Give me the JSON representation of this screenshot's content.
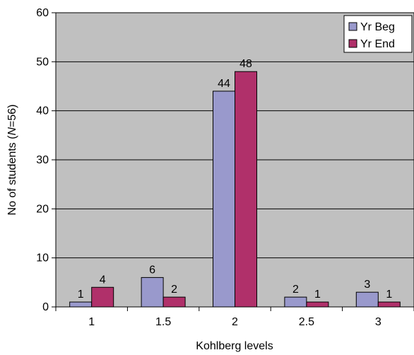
{
  "chart_data": {
    "type": "bar",
    "xlabel": "Kohlberg levels",
    "ylabel_prefix": "No of students (",
    "ylabel_italic": "N",
    "ylabel_suffix": "=56)",
    "categories": [
      "1",
      "1.5",
      "2",
      "2.5",
      "3"
    ],
    "ylim": [
      0,
      60
    ],
    "yticks": [
      0,
      10,
      20,
      30,
      40,
      50,
      60
    ],
    "grid": true,
    "legend_position": "top-right",
    "series": [
      {
        "name": "Yr Beg",
        "color": "#9999cc",
        "values": [
          1,
          6,
          44,
          2,
          3
        ]
      },
      {
        "name": "Yr End",
        "color": "#b0306a",
        "values": [
          4,
          2,
          48,
          1,
          1
        ]
      }
    ],
    "plot_background": "#c0c0c0"
  }
}
